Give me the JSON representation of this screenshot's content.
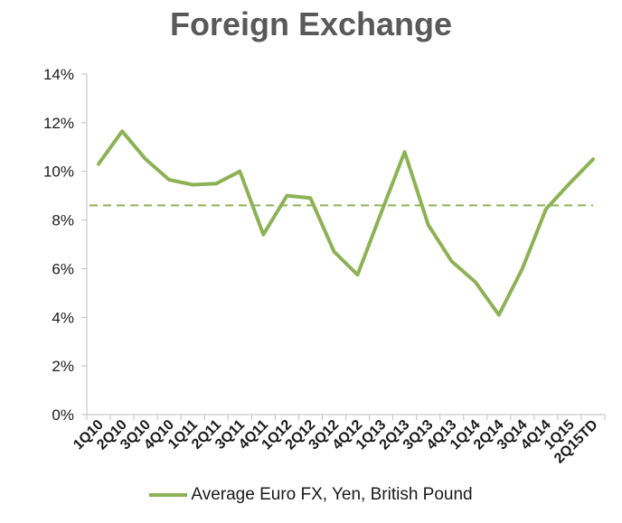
{
  "chart_data": {
    "type": "line",
    "title": "Foreign Exchange",
    "categories": [
      "1Q10",
      "2Q10",
      "3Q10",
      "4Q10",
      "1Q11",
      "2Q11",
      "3Q11",
      "4Q11",
      "1Q12",
      "2Q12",
      "3Q12",
      "4Q12",
      "1Q13",
      "2Q13",
      "3Q13",
      "4Q13",
      "1Q14",
      "2Q14",
      "3Q14",
      "4Q14",
      "1Q15",
      "2Q15TD"
    ],
    "y_ticks": [
      "0%",
      "2%",
      "4%",
      "6%",
      "8%",
      "10%",
      "12%",
      "14%"
    ],
    "ylim": [
      0,
      14
    ],
    "y_unit": "%",
    "series": [
      {
        "name": "Average Euro FX, Yen, British Pound",
        "color": "#8DB255",
        "values": [
          10.3,
          11.65,
          10.5,
          9.65,
          9.45,
          9.5,
          10.0,
          7.4,
          9.0,
          8.9,
          6.7,
          5.75,
          8.3,
          10.8,
          7.8,
          6.3,
          5.45,
          4.1,
          6.0,
          8.45,
          9.5,
          10.5
        ]
      }
    ],
    "reference_line": {
      "value": 8.6,
      "style": "dashed",
      "color": "#8DB255"
    },
    "legend_position": "bottom",
    "grid": false
  }
}
